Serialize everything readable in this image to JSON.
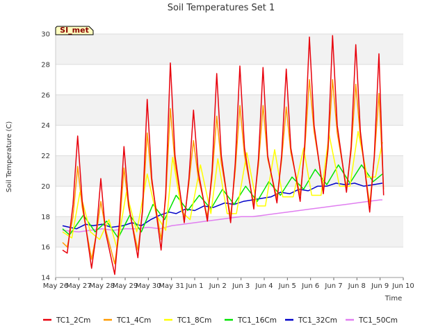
{
  "chart_data": {
    "type": "line",
    "title": "Soil Temperatures Set 1",
    "xlabel": "Time",
    "ylabel": "Soil Temperature (C)",
    "site_label": "SI_met",
    "x_tick_labels": [
      "May 26",
      "May 27",
      "May 28",
      "May 29",
      "May 30",
      "May 31",
      "Jun 1",
      "Jun 2",
      "Jun 3",
      "Jun 4",
      "Jun 5",
      "Jun 6",
      "Jun 7",
      "Jun 8",
      "Jun 9",
      "Jun 10"
    ],
    "xlim": [
      0,
      15
    ],
    "ylim": [
      14,
      30
    ],
    "y_ticks": [
      14,
      16,
      18,
      20,
      22,
      24,
      26,
      28,
      30
    ],
    "grid": true,
    "band_color": "#f2f2f2",
    "legend_position": "bottom",
    "series": [
      {
        "name": "TC1_2Cm",
        "color": "#e8000b",
        "x": [
          0.3,
          0.5,
          0.75,
          0.95,
          1.15,
          1.55,
          1.75,
          1.95,
          2.15,
          2.55,
          2.75,
          2.95,
          3.15,
          3.55,
          3.75,
          3.95,
          4.15,
          4.55,
          4.75,
          4.95,
          5.15,
          5.55,
          5.75,
          5.95,
          6.15,
          6.55,
          6.75,
          6.95,
          7.15,
          7.55,
          7.75,
          7.95,
          8.15,
          8.55,
          8.75,
          8.95,
          9.15,
          9.55,
          9.75,
          9.95,
          10.15,
          10.55,
          10.75,
          10.95,
          11.15,
          11.55,
          11.75,
          11.95,
          12.15,
          12.55,
          12.75,
          12.95,
          13.15,
          13.55,
          13.75,
          13.95,
          14.15
        ],
        "y": [
          15.8,
          15.6,
          18.8,
          23.3,
          19.0,
          14.6,
          16.8,
          20.5,
          17.0,
          14.2,
          17.6,
          22.6,
          18.8,
          15.3,
          18.5,
          25.7,
          20.5,
          15.8,
          19.5,
          28.1,
          22.0,
          17.6,
          20.5,
          25.0,
          21.0,
          17.7,
          21.0,
          27.4,
          22.0,
          17.6,
          21.5,
          27.9,
          22.5,
          18.5,
          21.8,
          27.8,
          22.0,
          18.9,
          22.0,
          27.7,
          22.5,
          19.0,
          22.8,
          29.8,
          24.0,
          19.5,
          22.5,
          29.9,
          24.0,
          19.6,
          22.6,
          29.3,
          23.6,
          18.3,
          22.0,
          28.7,
          19.4
        ]
      },
      {
        "name": "TC1_4Cm",
        "color": "#ff9a00",
        "x": [
          0.3,
          0.5,
          0.75,
          0.95,
          1.15,
          1.55,
          1.75,
          1.95,
          2.15,
          2.55,
          2.75,
          2.95,
          3.15,
          3.55,
          3.75,
          3.95,
          4.15,
          4.55,
          4.75,
          4.95,
          5.15,
          5.55,
          5.75,
          5.95,
          6.15,
          6.55,
          6.75,
          6.95,
          7.15,
          7.55,
          7.75,
          7.95,
          8.15,
          8.55,
          8.75,
          8.95,
          9.15,
          9.55,
          9.75,
          9.95,
          10.15,
          10.55,
          10.75,
          10.95,
          11.15,
          11.55,
          11.75,
          11.95,
          12.15,
          12.55,
          12.75,
          12.95,
          13.15,
          13.55,
          13.75,
          13.95,
          14.15
        ],
        "y": [
          16.3,
          16.0,
          18.0,
          21.3,
          18.6,
          15.2,
          16.8,
          19.0,
          17.2,
          14.9,
          17.2,
          21.2,
          18.6,
          15.8,
          18.3,
          23.5,
          20.2,
          16.5,
          19.2,
          25.1,
          21.5,
          17.8,
          20.2,
          23.0,
          20.6,
          18.0,
          20.6,
          24.6,
          21.5,
          18.0,
          21.0,
          25.3,
          22.0,
          18.8,
          21.4,
          25.3,
          21.8,
          19.2,
          21.7,
          25.2,
          22.2,
          19.4,
          22.4,
          27.0,
          23.6,
          19.8,
          22.3,
          27.0,
          23.5,
          19.9,
          22.3,
          26.7,
          23.2,
          18.8,
          21.8,
          26.1,
          19.8
        ]
      },
      {
        "name": "TC1_8Cm",
        "color": "#ffff00",
        "x": [
          0.3,
          0.7,
          1.05,
          1.5,
          1.9,
          2.3,
          2.65,
          3.05,
          3.5,
          3.95,
          4.35,
          4.75,
          5.05,
          5.45,
          5.8,
          6.25,
          6.7,
          7.0,
          7.4,
          7.8,
          8.25,
          8.7,
          9.05,
          9.45,
          9.8,
          10.25,
          10.7,
          11.05,
          11.45,
          11.8,
          12.25,
          12.7,
          13.05,
          13.45,
          13.8,
          14.1
        ],
        "y": [
          17.0,
          16.6,
          19.6,
          17.0,
          16.5,
          17.8,
          15.9,
          19.6,
          17.0,
          20.8,
          18.1,
          17.1,
          21.9,
          18.3,
          17.8,
          21.4,
          18.2,
          21.8,
          18.2,
          18.2,
          22.2,
          18.7,
          18.7,
          22.4,
          19.3,
          19.3,
          22.5,
          19.4,
          19.4,
          23.4,
          20.0,
          20.0,
          23.6,
          20.6,
          20.6,
          22.9
        ]
      },
      {
        "name": "TC1_16Cm",
        "color": "#00e400",
        "x": [
          0.3,
          0.6,
          1.2,
          1.7,
          2.2,
          2.7,
          3.2,
          3.7,
          4.2,
          4.7,
          5.2,
          5.7,
          6.2,
          6.7,
          7.2,
          7.7,
          8.2,
          8.7,
          9.2,
          9.7,
          10.2,
          10.7,
          11.2,
          11.7,
          12.2,
          12.7,
          13.2,
          13.7,
          14.1
        ],
        "y": [
          17.2,
          16.8,
          18.1,
          17.0,
          17.7,
          16.6,
          18.1,
          17.0,
          18.8,
          17.8,
          19.4,
          18.4,
          19.4,
          18.5,
          19.8,
          18.8,
          20.0,
          19.0,
          20.3,
          19.4,
          20.6,
          19.8,
          21.1,
          20.1,
          21.4,
          20.2,
          21.4,
          20.3,
          20.8
        ]
      },
      {
        "name": "TC1_32Cm",
        "color": "#0000c8",
        "x": [
          0.3,
          0.6,
          0.9,
          1.3,
          1.6,
          2.0,
          2.4,
          2.9,
          3.3,
          3.7,
          4.1,
          4.5,
          4.9,
          5.2,
          5.6,
          6.0,
          6.4,
          6.8,
          7.3,
          7.7,
          8.1,
          8.5,
          8.9,
          9.3,
          9.7,
          10.1,
          10.5,
          10.9,
          11.3,
          11.7,
          12.1,
          12.5,
          12.9,
          13.3,
          13.7,
          14.1
        ],
        "y": [
          17.4,
          17.3,
          17.2,
          17.5,
          17.4,
          17.5,
          17.3,
          17.4,
          17.6,
          17.4,
          17.8,
          18.1,
          18.3,
          18.2,
          18.5,
          18.4,
          18.7,
          18.6,
          18.9,
          18.8,
          19.0,
          19.1,
          19.2,
          19.3,
          19.6,
          19.5,
          19.8,
          19.7,
          20.0,
          20.0,
          20.2,
          20.1,
          20.2,
          20.0,
          20.1,
          20.2
        ]
      },
      {
        "name": "TC1_50Cm",
        "color": "#e07ef0",
        "x": [
          0.3,
          1.0,
          1.5,
          2.0,
          2.5,
          3.0,
          3.5,
          4.0,
          4.5,
          5.0,
          5.5,
          6.0,
          6.5,
          7.0,
          7.5,
          8.0,
          8.5,
          9.0,
          9.5,
          10.0,
          10.5,
          11.0,
          11.5,
          12.0,
          12.5,
          13.0,
          13.5,
          14.0,
          14.1
        ],
        "y": [
          17.1,
          17.0,
          17.1,
          17.2,
          17.1,
          17.2,
          17.2,
          17.3,
          17.2,
          17.4,
          17.5,
          17.6,
          17.7,
          17.8,
          17.9,
          18.0,
          18.0,
          18.1,
          18.2,
          18.3,
          18.4,
          18.5,
          18.6,
          18.7,
          18.8,
          18.9,
          19.0,
          19.1,
          19.1
        ]
      }
    ]
  }
}
